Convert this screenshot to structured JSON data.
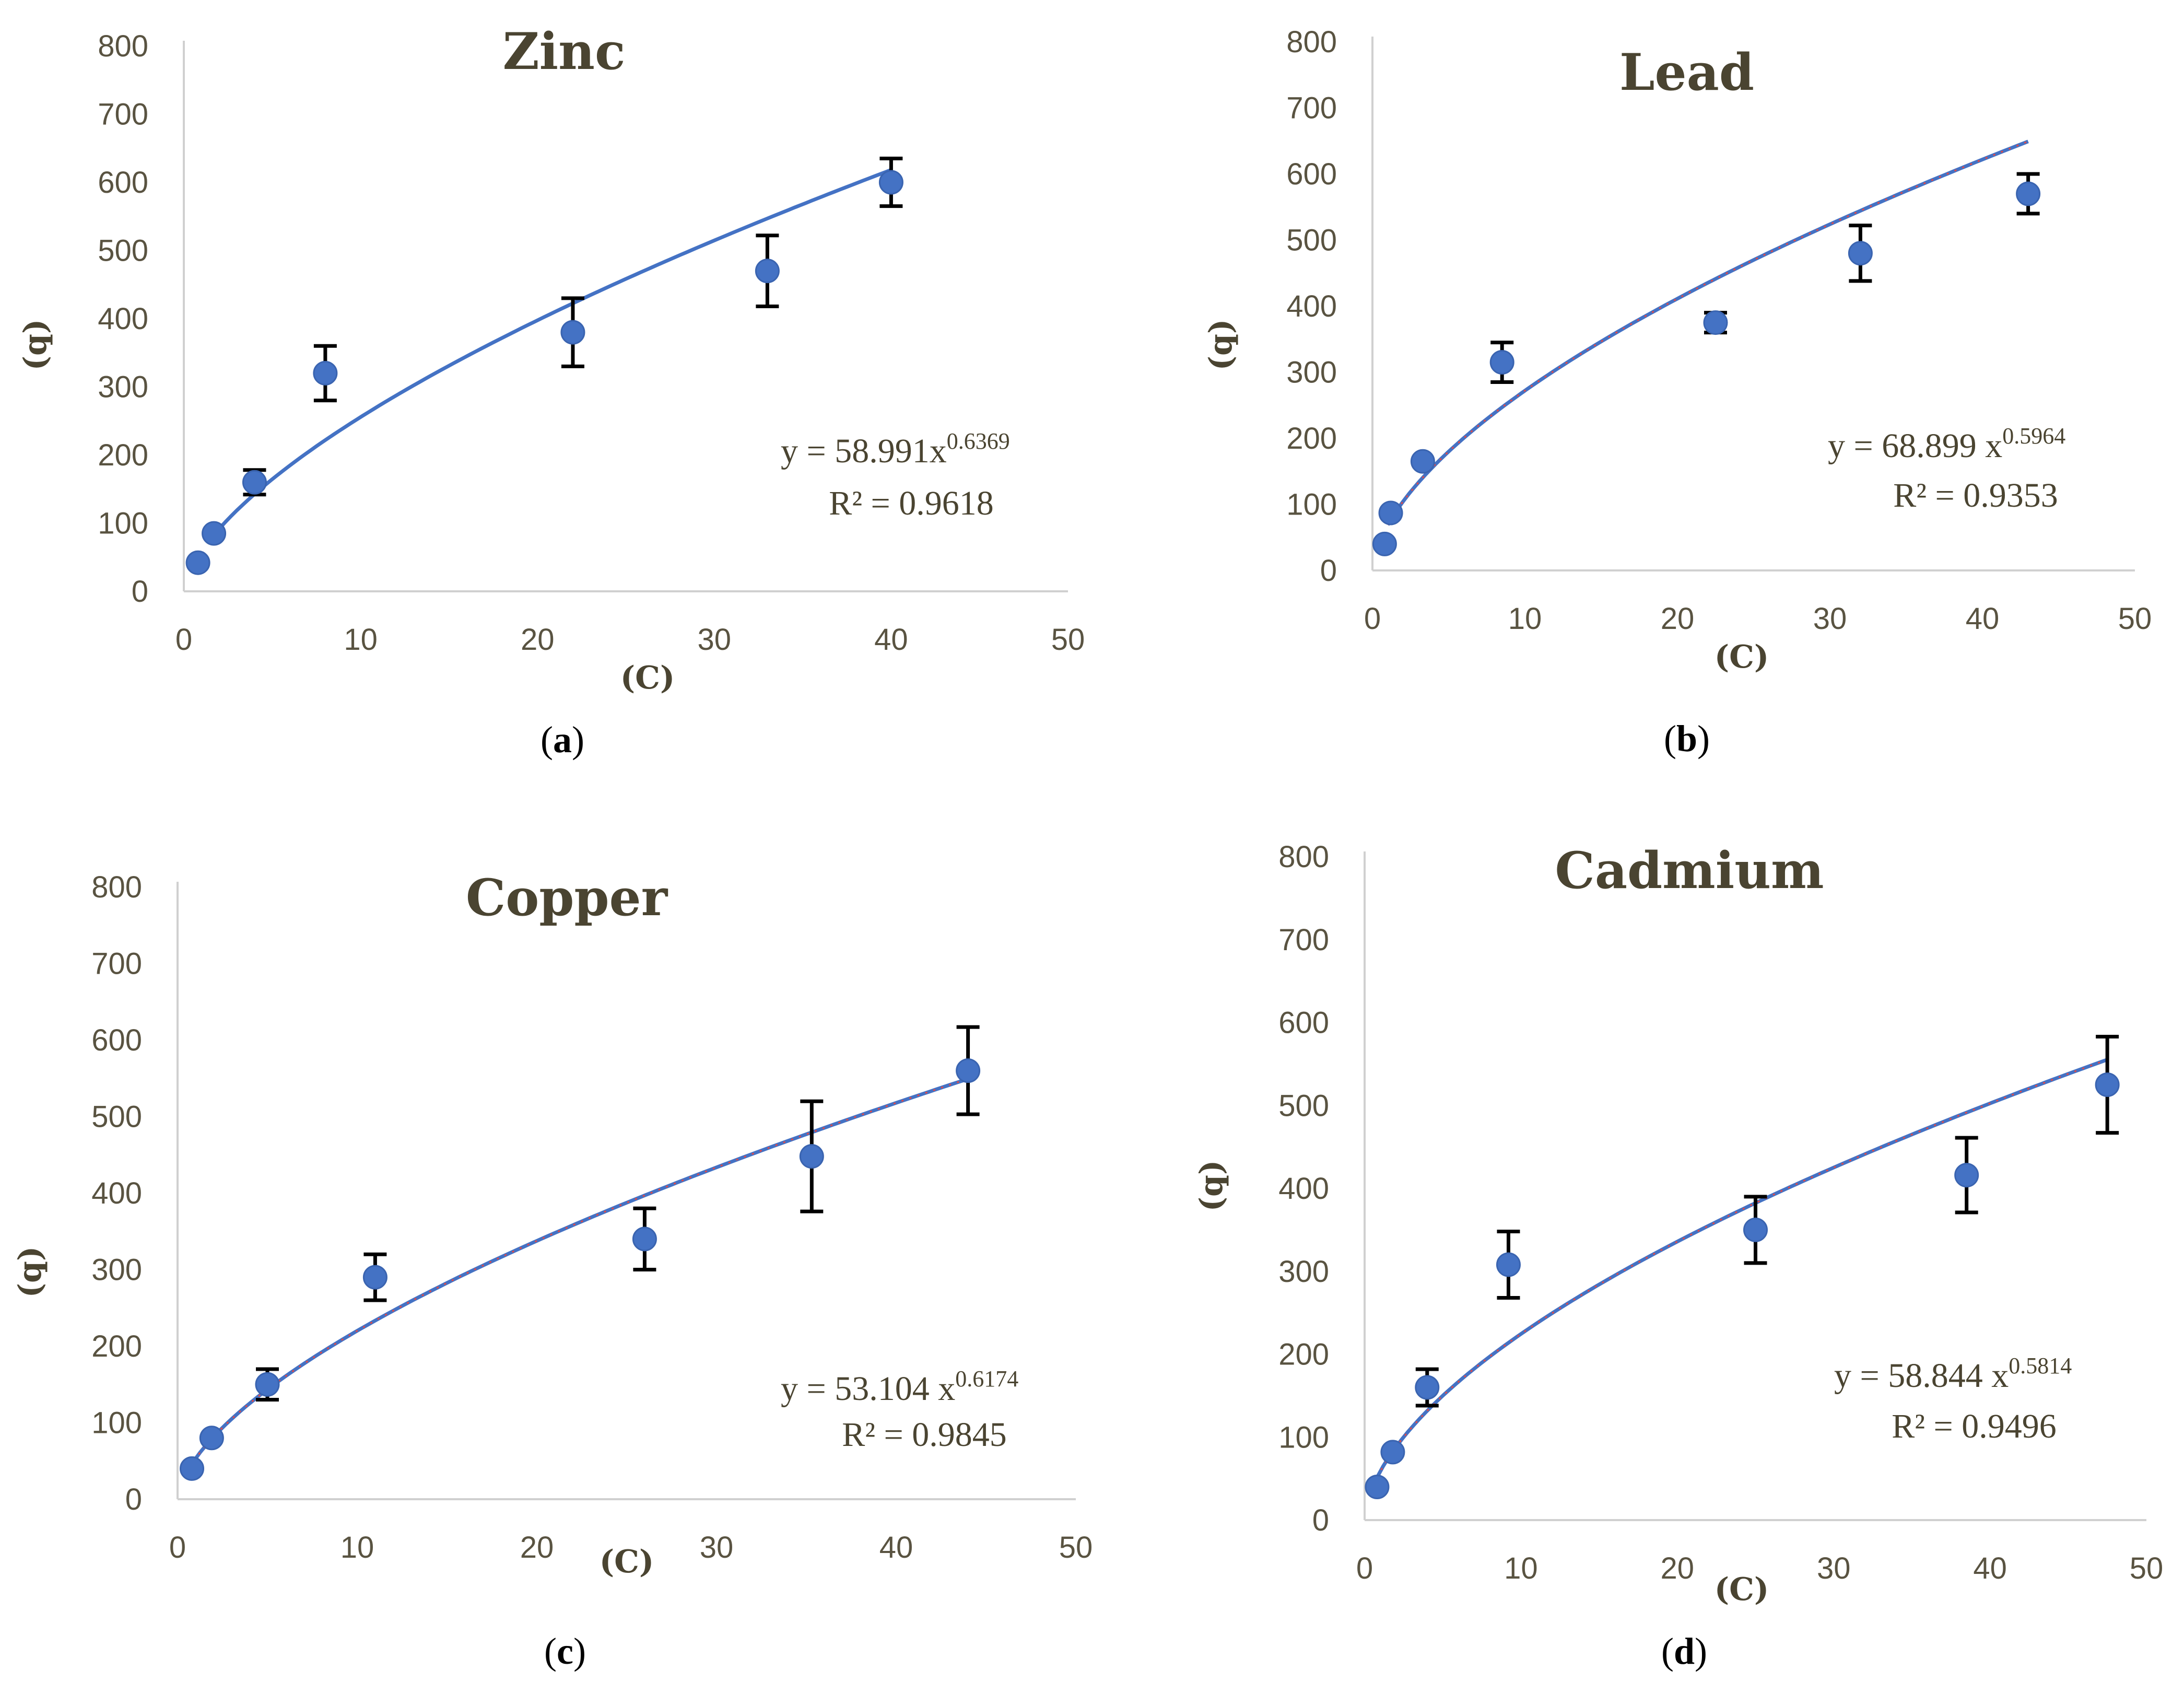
{
  "chart_data": [
    {
      "type": "scatter",
      "panel": "a",
      "title": "Zinc",
      "xlabel": "(C)",
      "ylabel": "(q)",
      "xlim": [
        0,
        50
      ],
      "ylim": [
        0,
        800
      ],
      "xticks": [
        0,
        10,
        20,
        30,
        40,
        50
      ],
      "yticks": [
        0,
        100,
        200,
        300,
        400,
        500,
        600,
        700,
        800
      ],
      "x": [
        0.8,
        1.7,
        4,
        8,
        22,
        33,
        40
      ],
      "y": [
        42,
        85,
        160,
        320,
        380,
        470,
        600
      ],
      "err": [
        0,
        0,
        18,
        40,
        50,
        52,
        35
      ],
      "fit": {
        "a": 58.991,
        "b": 0.6369,
        "x_start": 1.4,
        "x_end": 40
      },
      "equation": {
        "base": "y = 58.991x",
        "exp": "0.6369"
      },
      "r2": "R² = 0.9618",
      "dotted_fit": false
    },
    {
      "type": "scatter",
      "panel": "b",
      "title": "Lead",
      "xlabel": "(C)",
      "ylabel": "(q)",
      "xlim": [
        0,
        50
      ],
      "ylim": [
        0,
        800
      ],
      "xticks": [
        0,
        10,
        20,
        30,
        40,
        50
      ],
      "yticks": [
        0,
        100,
        200,
        300,
        400,
        500,
        600,
        700,
        800
      ],
      "x": [
        0.8,
        1.2,
        3.3,
        8.5,
        22.5,
        32,
        43
      ],
      "y": [
        40,
        87,
        165,
        315,
        375,
        480,
        570
      ],
      "err": [
        0,
        0,
        0,
        30,
        15,
        42,
        30
      ],
      "fit": {
        "a": 68.899,
        "b": 0.5964,
        "x_start": 1.0,
        "x_end": 43
      },
      "equation": {
        "base": "y = 68.899 x",
        "exp": "0.5964"
      },
      "r2": "R² = 0.9353",
      "dotted_fit": true
    },
    {
      "type": "scatter",
      "panel": "c",
      "title": "Copper",
      "xlabel": "(C)",
      "ylabel": "(q)",
      "xlim": [
        0,
        50
      ],
      "ylim": [
        0,
        800
      ],
      "xticks": [
        0,
        10,
        20,
        30,
        40,
        50
      ],
      "yticks": [
        0,
        100,
        200,
        300,
        400,
        500,
        600,
        700,
        800
      ],
      "x": [
        0.8,
        1.9,
        5,
        11,
        26,
        35.3,
        44
      ],
      "y": [
        40,
        80,
        150,
        290,
        340,
        448,
        560
      ],
      "err": [
        0,
        0,
        20,
        30,
        40,
        72,
        57
      ],
      "fit": {
        "a": 53.104,
        "b": 0.6174,
        "x_start": 0.9,
        "x_end": 44
      },
      "equation": {
        "base": "y = 53.104 x",
        "exp": "0.6174"
      },
      "r2": "R² = 0.9845",
      "dotted_fit": true
    },
    {
      "type": "scatter",
      "panel": "d",
      "title": "Cadmium",
      "xlabel": "(C)",
      "ylabel": "(q)",
      "xlim": [
        0,
        50
      ],
      "ylim": [
        0,
        800
      ],
      "xticks": [
        0,
        10,
        20,
        30,
        40,
        50
      ],
      "yticks": [
        0,
        100,
        200,
        300,
        400,
        500,
        600,
        700,
        800
      ],
      "x": [
        0.8,
        1.8,
        4,
        9.2,
        25,
        38.5,
        47.5
      ],
      "y": [
        40,
        82,
        160,
        308,
        350,
        416,
        525
      ],
      "err": [
        0,
        0,
        22,
        40,
        40,
        45,
        58
      ],
      "fit": {
        "a": 58.844,
        "b": 0.5814,
        "x_start": 0.8,
        "x_end": 47.5
      },
      "equation": {
        "base": "y = 58.844 x",
        "exp": "0.5814"
      },
      "r2": "R² = 0.9496",
      "dotted_fit": true
    }
  ],
  "panel_labels": [
    "a",
    "b",
    "c",
    "d"
  ]
}
